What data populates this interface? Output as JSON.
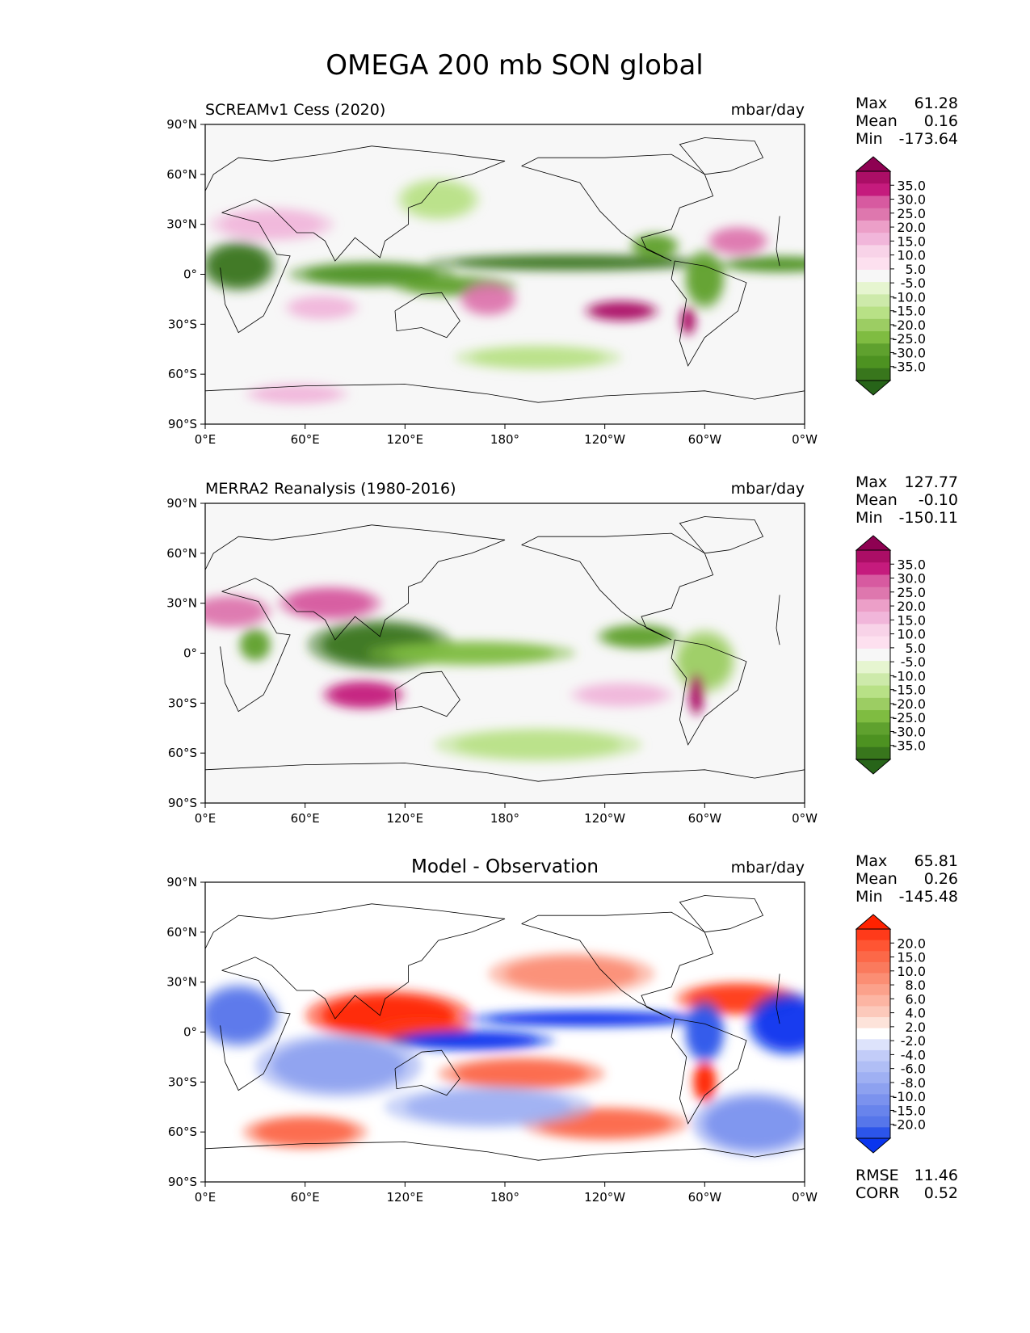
{
  "title": "OMEGA 200 mb SON global",
  "colors": {
    "pos": [
      "#8e0152",
      "#c51b7d",
      "#de77ae",
      "#f1b6da",
      "#fde0ef",
      "#f7f7f7"
    ],
    "neg": [
      "#e6f5d0",
      "#b8e186",
      "#7fbc41",
      "#4d9221",
      "#276419"
    ],
    "diff_pos": [
      "#ff2200",
      "#ff5533",
      "#fa7a5d",
      "#fba18b",
      "#fcc9bb",
      "#fde3da"
    ],
    "diff_neg": [
      "#dde3fb",
      "#c2ccf8",
      "#9fb0f3",
      "#7b92ee",
      "#5676ea",
      "#2c55ea",
      "#0a35ee"
    ]
  },
  "panels": [
    {
      "name": "test",
      "left_title": "SCREAMv1 Cess (2020)",
      "right_title": "mbar/day",
      "stats": [
        {
          "label": "Max",
          "value": "61.28"
        },
        {
          "label": "Mean",
          "value": "0.16"
        },
        {
          "label": "Min",
          "value": "-173.64"
        }
      ],
      "colorbar": {
        "levels": [
          "35.0",
          "30.0",
          "25.0",
          "20.0",
          "15.0",
          "10.0",
          "5.0",
          "-5.0",
          "-10.0",
          "-15.0",
          "-20.0",
          "-25.0",
          "-30.0",
          "-35.0"
        ],
        "colors": [
          "#8e0152",
          "#ab0e66",
          "#c51b7d",
          "#d75aa0",
          "#de77ae",
          "#ec9fc8",
          "#f1b6da",
          "#f8d3e8",
          "#fde0ef",
          "#f7f7f7",
          "#e6f5d0",
          "#cdeaaa",
          "#b8e186",
          "#9ccd63",
          "#7fbc41",
          "#5fa12e",
          "#4d9221",
          "#38761c",
          "#276419"
        ]
      },
      "features": [
        {
          "lon": 20,
          "lat": 5,
          "rx": 18,
          "ry": 12,
          "v": -30
        },
        {
          "lon": 100,
          "lat": 0,
          "rx": 40,
          "ry": 6,
          "v": -28
        },
        {
          "lon": 150,
          "lat": -7,
          "rx": 30,
          "ry": 5,
          "v": -25
        },
        {
          "lon": 220,
          "lat": 7,
          "rx": 70,
          "ry": 4,
          "v": -30
        },
        {
          "lon": 300,
          "lat": -3,
          "rx": 10,
          "ry": 14,
          "v": -25
        },
        {
          "lon": 345,
          "lat": 6,
          "rx": 30,
          "ry": 4,
          "v": -28
        },
        {
          "lon": 270,
          "lat": 17,
          "rx": 12,
          "ry": 6,
          "v": -25
        },
        {
          "lon": 250,
          "lat": -22,
          "rx": 18,
          "ry": 5,
          "v": 30
        },
        {
          "lon": 170,
          "lat": -15,
          "rx": 14,
          "ry": 8,
          "v": 18
        },
        {
          "lon": 70,
          "lat": -20,
          "rx": 18,
          "ry": 6,
          "v": 12
        },
        {
          "lon": 40,
          "lat": 30,
          "rx": 30,
          "ry": 8,
          "v": 10
        },
        {
          "lon": 320,
          "lat": 20,
          "rx": 15,
          "ry": 7,
          "v": 18
        },
        {
          "lon": 55,
          "lat": -72,
          "rx": 25,
          "ry": 5,
          "v": 12
        },
        {
          "lon": 200,
          "lat": -50,
          "rx": 40,
          "ry": 6,
          "v": -12
        },
        {
          "lon": 140,
          "lat": 45,
          "rx": 20,
          "ry": 10,
          "v": -12
        },
        {
          "lon": 290,
          "lat": -28,
          "rx": 4,
          "ry": 7,
          "v": 30
        }
      ]
    },
    {
      "name": "ref",
      "left_title": "MERRA2 Reanalysis (1980-2016)",
      "right_title": "mbar/day",
      "stats": [
        {
          "label": "Max",
          "value": "127.77"
        },
        {
          "label": "Mean",
          "value": "-0.10"
        },
        {
          "label": "Min",
          "value": "-150.11"
        }
      ],
      "colorbar": {
        "levels": [
          "35.0",
          "30.0",
          "25.0",
          "20.0",
          "15.0",
          "10.0",
          "5.0",
          "-5.0",
          "-10.0",
          "-15.0",
          "-20.0",
          "-25.0",
          "-30.0",
          "-35.0"
        ],
        "colors": [
          "#8e0152",
          "#ab0e66",
          "#c51b7d",
          "#d75aa0",
          "#de77ae",
          "#ec9fc8",
          "#f1b6da",
          "#f8d3e8",
          "#fde0ef",
          "#f7f7f7",
          "#e6f5d0",
          "#cdeaaa",
          "#b8e186",
          "#9ccd63",
          "#7fbc41",
          "#5fa12e",
          "#4d9221",
          "#38761c",
          "#276419"
        ]
      },
      "features": [
        {
          "lon": 105,
          "lat": 5,
          "rx": 35,
          "ry": 12,
          "v": -30
        },
        {
          "lon": 160,
          "lat": 0,
          "rx": 50,
          "ry": 6,
          "v": -20
        },
        {
          "lon": 260,
          "lat": 10,
          "rx": 20,
          "ry": 6,
          "v": -25
        },
        {
          "lon": 300,
          "lat": -5,
          "rx": 15,
          "ry": 15,
          "v": -15
        },
        {
          "lon": 95,
          "lat": -25,
          "rx": 20,
          "ry": 7,
          "v": 28
        },
        {
          "lon": 75,
          "lat": 30,
          "rx": 25,
          "ry": 8,
          "v": 25
        },
        {
          "lon": 15,
          "lat": 25,
          "rx": 20,
          "ry": 8,
          "v": 18
        },
        {
          "lon": 295,
          "lat": -25,
          "rx": 4,
          "ry": 10,
          "v": 30
        },
        {
          "lon": 200,
          "lat": -55,
          "rx": 50,
          "ry": 8,
          "v": -10
        },
        {
          "lon": 250,
          "lat": -25,
          "rx": 25,
          "ry": 6,
          "v": 12
        },
        {
          "lon": 30,
          "lat": 5,
          "rx": 8,
          "ry": 8,
          "v": -25
        }
      ]
    },
    {
      "name": "diff",
      "left_title": "",
      "center_title": "Model - Observation",
      "right_title": "mbar/day",
      "stats": [
        {
          "label": "Max",
          "value": "65.81"
        },
        {
          "label": "Mean",
          "value": "0.26"
        },
        {
          "label": "Min",
          "value": "-145.48"
        }
      ],
      "extra_stats": [
        {
          "label": "RMSE",
          "value": "11.46"
        },
        {
          "label": "CORR",
          "value": "0.52"
        }
      ],
      "colorbar": {
        "levels": [
          "20.0",
          "15.0",
          "10.0",
          "8.0",
          "6.0",
          "4.0",
          "2.0",
          "-2.0",
          "-4.0",
          "-6.0",
          "-8.0",
          "-10.0",
          "-15.0",
          "-20.0"
        ],
        "colors": [
          "#ff2200",
          "#ff3a1a",
          "#ff5533",
          "#fc6848",
          "#fa7a5d",
          "#fb8e74",
          "#fba18b",
          "#fcb5a3",
          "#fcc9bb",
          "#fde3da",
          "#ffffff",
          "#dde3fb",
          "#c2ccf8",
          "#b0bef5",
          "#9fb0f3",
          "#8da1f0",
          "#7b92ee",
          "#6884ec",
          "#5676ea",
          "#2c55ea",
          "#0a35ee"
        ]
      },
      "features": [
        {
          "lon": 110,
          "lat": 10,
          "rx": 40,
          "ry": 12,
          "v": 20
        },
        {
          "lon": 130,
          "lat": 0,
          "rx": 25,
          "ry": 6,
          "v": 18
        },
        {
          "lon": 190,
          "lat": -25,
          "rx": 40,
          "ry": 8,
          "v": 15
        },
        {
          "lon": 240,
          "lat": -55,
          "rx": 40,
          "ry": 8,
          "v": 15
        },
        {
          "lon": 60,
          "lat": -60,
          "rx": 30,
          "ry": 8,
          "v": 15
        },
        {
          "lon": 320,
          "lat": 20,
          "rx": 30,
          "ry": 8,
          "v": 18
        },
        {
          "lon": 230,
          "lat": 8,
          "rx": 60,
          "ry": 4,
          "v": -20
        },
        {
          "lon": 160,
          "lat": -5,
          "rx": 40,
          "ry": 5,
          "v": -20
        },
        {
          "lon": 20,
          "lat": 10,
          "rx": 20,
          "ry": 15,
          "v": -15
        },
        {
          "lon": 80,
          "lat": -20,
          "rx": 40,
          "ry": 15,
          "v": -10
        },
        {
          "lon": 350,
          "lat": 5,
          "rx": 20,
          "ry": 15,
          "v": -20
        },
        {
          "lon": 300,
          "lat": 0,
          "rx": 10,
          "ry": 15,
          "v": -18
        },
        {
          "lon": 300,
          "lat": -30,
          "rx": 6,
          "ry": 10,
          "v": 20
        },
        {
          "lon": 170,
          "lat": -45,
          "rx": 50,
          "ry": 10,
          "v": -8
        },
        {
          "lon": 330,
          "lat": -55,
          "rx": 30,
          "ry": 15,
          "v": -12
        },
        {
          "lon": 220,
          "lat": 35,
          "rx": 40,
          "ry": 10,
          "v": 10
        }
      ]
    }
  ],
  "x_ticks": [
    "0°E",
    "60°E",
    "120°E",
    "180°",
    "120°W",
    "60°W",
    "0°W"
  ],
  "y_ticks": [
    "90°N",
    "60°N",
    "30°N",
    "0°",
    "30°S",
    "60°S",
    "90°S"
  ],
  "chart_data": {
    "type": "heatmap",
    "title": "OMEGA 200 mb SON global",
    "units": "mbar/day",
    "xlim": [
      0,
      360
    ],
    "ylim": [
      -90,
      90
    ],
    "panels": [
      "SCREAMv1 Cess (2020)",
      "MERRA2 Reanalysis (1980-2016)",
      "Model - Observation"
    ]
  }
}
